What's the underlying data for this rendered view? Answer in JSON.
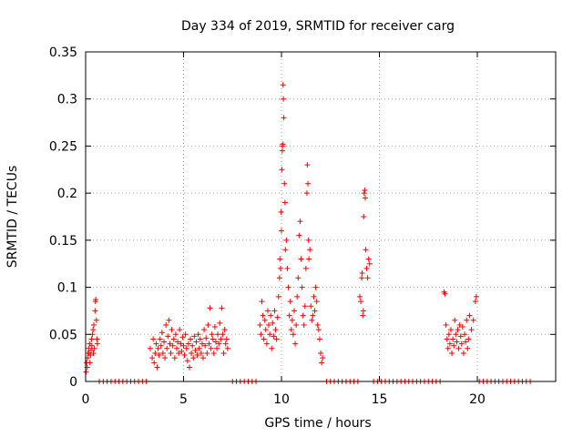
{
  "chart_data": {
    "type": "scatter",
    "title": "Day 334 of 2019, SRMTID for receiver carg",
    "xlabel": "GPS time / hours",
    "ylabel": "SRMTID / TECUs",
    "xlim": [
      0,
      24
    ],
    "ylim": [
      0,
      0.35
    ],
    "xticks": [
      0,
      5,
      10,
      15,
      20
    ],
    "xtick_labels": [
      "0",
      "5",
      "10",
      "15",
      "20"
    ],
    "yticks": [
      0,
      0.05,
      0.1,
      0.15,
      0.2,
      0.25,
      0.3,
      0.35
    ],
    "ytick_labels": [
      "0",
      "0.05",
      "0.1",
      "0.15",
      "0.2",
      "0.25",
      "0.3",
      "0.35"
    ],
    "grid": true,
    "marker": "+",
    "color": "#ff0000",
    "series": [
      {
        "name": "SRMTID",
        "points": [
          [
            0.02,
            0.01
          ],
          [
            0.05,
            0.02
          ],
          [
            0.08,
            0.015
          ],
          [
            0.1,
            0.025
          ],
          [
            0.12,
            0.03
          ],
          [
            0.15,
            0.035
          ],
          [
            0.18,
            0.03
          ],
          [
            0.2,
            0.04
          ],
          [
            0.22,
            0.02
          ],
          [
            0.25,
            0.028
          ],
          [
            0.28,
            0.033
          ],
          [
            0.3,
            0.045
          ],
          [
            0.32,
            0.038
          ],
          [
            0.35,
            0.05
          ],
          [
            0.38,
            0.055
          ],
          [
            0.4,
            0.03
          ],
          [
            0.42,
            0.06
          ],
          [
            0.45,
            0.035
          ],
          [
            0.48,
            0.075
          ],
          [
            0.5,
            0.085
          ],
          [
            0.52,
            0.087
          ],
          [
            0.55,
            0.065
          ],
          [
            0.58,
            0.045
          ],
          [
            0.6,
            0.04
          ],
          [
            0.7,
            0
          ],
          [
            0.9,
            0
          ],
          [
            1.1,
            0
          ],
          [
            1.3,
            0
          ],
          [
            1.5,
            0
          ],
          [
            1.7,
            0
          ],
          [
            1.9,
            0
          ],
          [
            2.1,
            0
          ],
          [
            2.3,
            0
          ],
          [
            2.5,
            0
          ],
          [
            2.7,
            0
          ],
          [
            2.9,
            0
          ],
          [
            3.1,
            0
          ],
          [
            3.3,
            0.035
          ],
          [
            3.4,
            0.025
          ],
          [
            3.45,
            0.045
          ],
          [
            3.5,
            0.02
          ],
          [
            3.55,
            0.03
          ],
          [
            3.6,
            0.04
          ],
          [
            3.65,
            0.015
          ],
          [
            3.7,
            0.035
          ],
          [
            3.75,
            0.028
          ],
          [
            3.8,
            0.045
          ],
          [
            3.85,
            0.038
          ],
          [
            3.9,
            0.052
          ],
          [
            3.95,
            0.03
          ],
          [
            4.0,
            0.042
          ],
          [
            4.05,
            0.025
          ],
          [
            4.1,
            0.06
          ],
          [
            4.15,
            0.035
          ],
          [
            4.2,
            0.048
          ],
          [
            4.25,
            0.065
          ],
          [
            4.3,
            0.04
          ],
          [
            4.35,
            0.03
          ],
          [
            4.4,
            0.055
          ],
          [
            4.45,
            0.038
          ],
          [
            4.5,
            0.045
          ],
          [
            4.55,
            0.025
          ],
          [
            4.6,
            0.05
          ],
          [
            4.65,
            0.035
          ],
          [
            4.7,
            0.042
          ],
          [
            4.75,
            0.03
          ],
          [
            4.8,
            0.055
          ],
          [
            4.85,
            0.04
          ],
          [
            4.9,
            0.032
          ],
          [
            4.95,
            0.047
          ],
          [
            5.0,
            0.038
          ],
          [
            5.05,
            0.028
          ],
          [
            5.1,
            0.05
          ],
          [
            5.15,
            0.035
          ],
          [
            5.2,
            0.022
          ],
          [
            5.25,
            0.04
          ],
          [
            5.3,
            0.015
          ],
          [
            5.35,
            0.045
          ],
          [
            5.4,
            0.03
          ],
          [
            5.45,
            0.038
          ],
          [
            5.5,
            0.025
          ],
          [
            5.55,
            0.048
          ],
          [
            5.6,
            0.033
          ],
          [
            5.65,
            0.042
          ],
          [
            5.7,
            0.028
          ],
          [
            5.75,
            0.05
          ],
          [
            5.8,
            0.035
          ],
          [
            5.85,
            0.045
          ],
          [
            5.9,
            0.03
          ],
          [
            5.95,
            0.04
          ],
          [
            6.0,
            0.025
          ],
          [
            6.05,
            0.055
          ],
          [
            6.1,
            0.038
          ],
          [
            6.15,
            0.046
          ],
          [
            6.2,
            0.03
          ],
          [
            6.25,
            0.06
          ],
          [
            6.3,
            0.04
          ],
          [
            6.35,
            0.078
          ],
          [
            6.4,
            0.035
          ],
          [
            6.45,
            0.05
          ],
          [
            6.5,
            0.045
          ],
          [
            6.55,
            0.03
          ],
          [
            6.6,
            0.058
          ],
          [
            6.65,
            0.042
          ],
          [
            6.7,
            0.035
          ],
          [
            6.75,
            0.05
          ],
          [
            6.8,
            0.04
          ],
          [
            6.85,
            0.062
          ],
          [
            6.9,
            0.045
          ],
          [
            6.95,
            0.078
          ],
          [
            7.0,
            0.05
          ],
          [
            7.05,
            0.03
          ],
          [
            7.1,
            0.055
          ],
          [
            7.15,
            0.04
          ],
          [
            7.2,
            0.045
          ],
          [
            7.25,
            0.035
          ],
          [
            7.5,
            0
          ],
          [
            7.7,
            0
          ],
          [
            7.9,
            0
          ],
          [
            8.1,
            0
          ],
          [
            8.3,
            0
          ],
          [
            8.5,
            0
          ],
          [
            8.7,
            0
          ],
          [
            8.9,
            0.06
          ],
          [
            8.95,
            0.05
          ],
          [
            9.0,
            0.085
          ],
          [
            9.05,
            0.07
          ],
          [
            9.1,
            0.045
          ],
          [
            9.15,
            0.065
          ],
          [
            9.2,
            0.055
          ],
          [
            9.25,
            0.04
          ],
          [
            9.3,
            0.075
          ],
          [
            9.35,
            0.06
          ],
          [
            9.4,
            0.05
          ],
          [
            9.45,
            0.07
          ],
          [
            9.5,
            0.035
          ],
          [
            9.55,
            0.062
          ],
          [
            9.6,
            0.048
          ],
          [
            9.65,
            0.075
          ],
          [
            9.7,
            0.055
          ],
          [
            9.75,
            0.045
          ],
          [
            9.8,
            0.068
          ],
          [
            9.85,
            0.09
          ],
          [
            9.9,
            0.11
          ],
          [
            9.92,
            0.13
          ],
          [
            9.95,
            0.12
          ],
          [
            9.98,
            0.18
          ],
          [
            10.0,
            0.16
          ],
          [
            10.02,
            0.225
          ],
          [
            10.04,
            0.245
          ],
          [
            10.05,
            0.25
          ],
          [
            10.06,
            0.252
          ],
          [
            10.08,
            0.315
          ],
          [
            10.1,
            0.3
          ],
          [
            10.12,
            0.28
          ],
          [
            10.15,
            0.21
          ],
          [
            10.18,
            0.19
          ],
          [
            10.2,
            0.14
          ],
          [
            10.25,
            0.15
          ],
          [
            10.3,
            0.12
          ],
          [
            10.35,
            0.1
          ],
          [
            10.4,
            0.07
          ],
          [
            10.45,
            0.085
          ],
          [
            10.5,
            0.055
          ],
          [
            10.55,
            0.065
          ],
          [
            10.6,
            0.05
          ],
          [
            10.65,
            0.075
          ],
          [
            10.7,
            0.04
          ],
          [
            10.75,
            0.06
          ],
          [
            10.8,
            0.09
          ],
          [
            10.85,
            0.11
          ],
          [
            10.9,
            0.155
          ],
          [
            10.95,
            0.17
          ],
          [
            11.0,
            0.13
          ],
          [
            11.05,
            0.1
          ],
          [
            11.1,
            0.07
          ],
          [
            11.15,
            0.06
          ],
          [
            11.2,
            0.08
          ],
          [
            11.25,
            0.12
          ],
          [
            11.3,
            0.2
          ],
          [
            11.32,
            0.23
          ],
          [
            11.35,
            0.21
          ],
          [
            11.38,
            0.15
          ],
          [
            11.4,
            0.13
          ],
          [
            11.45,
            0.14
          ],
          [
            11.5,
            0.08
          ],
          [
            11.55,
            0.065
          ],
          [
            11.6,
            0.07
          ],
          [
            11.65,
            0.09
          ],
          [
            11.7,
            0.075
          ],
          [
            11.75,
            0.1
          ],
          [
            11.8,
            0.085
          ],
          [
            11.85,
            0.06
          ],
          [
            11.9,
            0.055
          ],
          [
            11.95,
            0.045
          ],
          [
            12.0,
            0.03
          ],
          [
            12.05,
            0.02
          ],
          [
            12.1,
            0.025
          ],
          [
            12.3,
            0
          ],
          [
            12.5,
            0
          ],
          [
            12.7,
            0
          ],
          [
            12.9,
            0
          ],
          [
            13.1,
            0
          ],
          [
            13.3,
            0
          ],
          [
            13.5,
            0
          ],
          [
            13.7,
            0
          ],
          [
            13.9,
            0
          ],
          [
            14.0,
            0.09
          ],
          [
            14.05,
            0.085
          ],
          [
            14.1,
            0.11
          ],
          [
            14.12,
            0.115
          ],
          [
            14.15,
            0.07
          ],
          [
            14.18,
            0.075
          ],
          [
            14.2,
            0.175
          ],
          [
            14.22,
            0.2
          ],
          [
            14.25,
            0.203
          ],
          [
            14.28,
            0.195
          ],
          [
            14.3,
            0.14
          ],
          [
            14.35,
            0.12
          ],
          [
            14.4,
            0.11
          ],
          [
            14.45,
            0.13
          ],
          [
            14.5,
            0.125
          ],
          [
            14.7,
            0
          ],
          [
            14.9,
            0
          ],
          [
            15.1,
            0
          ],
          [
            15.3,
            0
          ],
          [
            15.5,
            0
          ],
          [
            15.7,
            0
          ],
          [
            15.9,
            0
          ],
          [
            16.1,
            0
          ],
          [
            16.3,
            0
          ],
          [
            16.5,
            0
          ],
          [
            16.7,
            0
          ],
          [
            16.9,
            0
          ],
          [
            17.1,
            0
          ],
          [
            17.3,
            0
          ],
          [
            17.5,
            0
          ],
          [
            17.7,
            0
          ],
          [
            17.9,
            0
          ],
          [
            18.1,
            0
          ],
          [
            18.3,
            0.095
          ],
          [
            18.35,
            0.093
          ],
          [
            18.4,
            0.06
          ],
          [
            18.45,
            0.045
          ],
          [
            18.5,
            0.035
          ],
          [
            18.55,
            0.05
          ],
          [
            18.6,
            0.04
          ],
          [
            18.65,
            0.055
          ],
          [
            18.7,
            0.03
          ],
          [
            18.75,
            0.045
          ],
          [
            18.8,
            0.038
          ],
          [
            18.85,
            0.065
          ],
          [
            18.9,
            0.05
          ],
          [
            18.95,
            0.042
          ],
          [
            19.0,
            0.055
          ],
          [
            19.05,
            0.035
          ],
          [
            19.1,
            0.06
          ],
          [
            19.15,
            0.048
          ],
          [
            19.2,
            0.04
          ],
          [
            19.25,
            0.058
          ],
          [
            19.3,
            0.03
          ],
          [
            19.35,
            0.05
          ],
          [
            19.4,
            0.042
          ],
          [
            19.45,
            0.065
          ],
          [
            19.5,
            0.035
          ],
          [
            19.55,
            0.045
          ],
          [
            19.6,
            0.07
          ],
          [
            19.7,
            0.055
          ],
          [
            19.8,
            0.065
          ],
          [
            19.9,
            0.085
          ],
          [
            19.95,
            0.09
          ],
          [
            20.1,
            0
          ],
          [
            20.3,
            0
          ],
          [
            20.5,
            0
          ],
          [
            20.7,
            0
          ],
          [
            20.9,
            0
          ],
          [
            21.1,
            0
          ],
          [
            21.3,
            0
          ],
          [
            21.5,
            0
          ],
          [
            21.7,
            0
          ],
          [
            21.9,
            0
          ],
          [
            22.1,
            0
          ],
          [
            22.3,
            0
          ],
          [
            22.5,
            0
          ],
          [
            22.7,
            0
          ]
        ]
      }
    ]
  }
}
